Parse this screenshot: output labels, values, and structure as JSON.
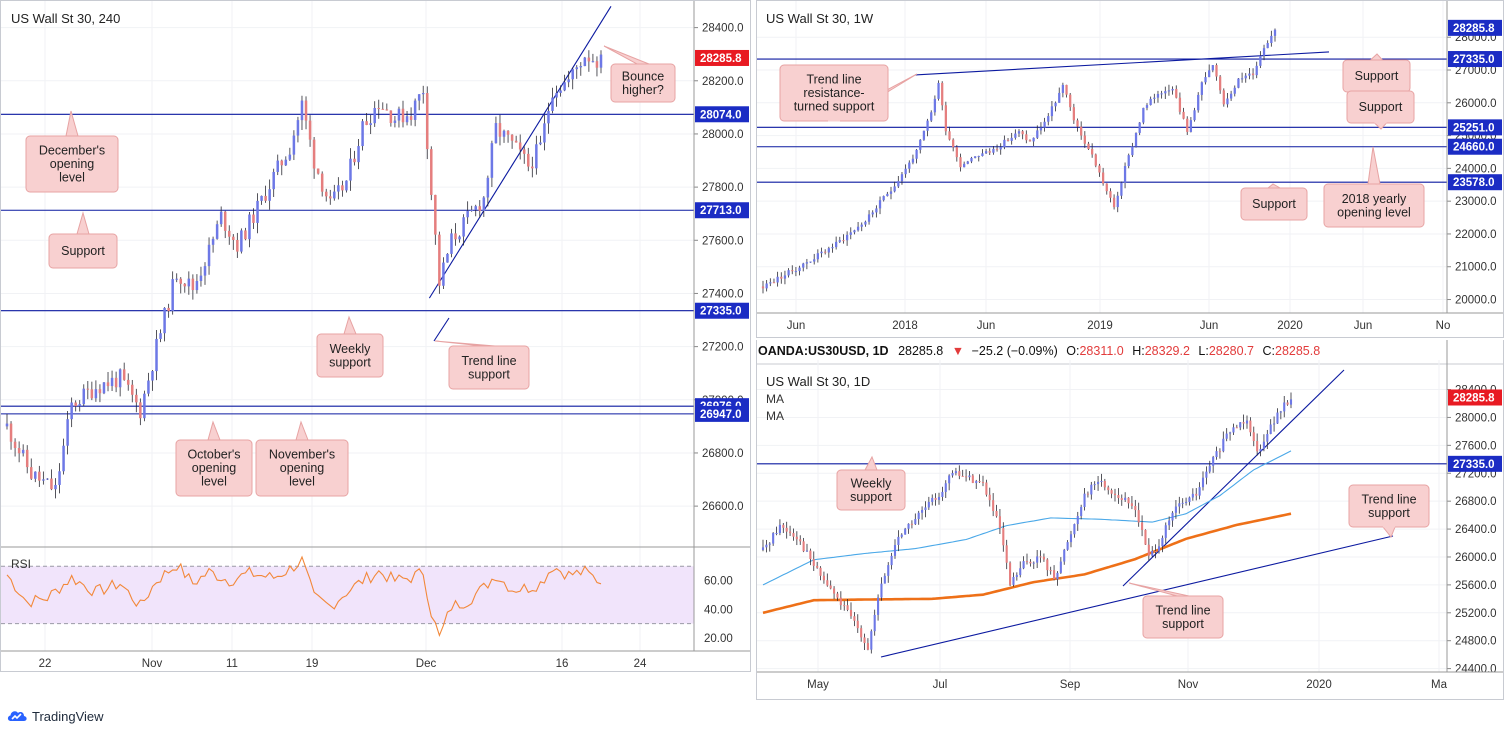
{
  "colors": {
    "up": "#6d78e6",
    "down": "#e57e7e",
    "level_line": "#0c1aa0",
    "badge_blue": "#1b2cc4",
    "badge_red": "#e81a22",
    "callout_bg": "#f8d0d0",
    "callout_border": "#e7a3a3",
    "rsi_line": "#f2883a",
    "rsi_band": "#f1e4fb",
    "ma_blue": "#4aa8e8",
    "ma_orange": "#ee7018"
  },
  "footer": {
    "brand": "TradingView",
    "icon": "tradingview-cloud-icon"
  },
  "chart_data": [
    {
      "id": "h4",
      "type": "candlestick",
      "title": "US Wall St 30, 240",
      "ylim": [
        26450,
        28470
      ],
      "y_ticks": [
        "28400.0",
        "28200.0",
        "28000.0",
        "27800.0",
        "27600.0",
        "27400.0",
        "27200.0",
        "27000.0",
        "26800.0",
        "26600.0"
      ],
      "x_ticks": [
        "22",
        "Nov",
        "11",
        "19",
        "Dec",
        "16",
        "24"
      ],
      "price_labels": [
        {
          "text": "28285.8",
          "value": 28285.8,
          "color": "red"
        },
        {
          "text": "28074.0",
          "value": 28074,
          "color": "blue"
        },
        {
          "text": "27713.0",
          "value": 27713,
          "color": "blue"
        },
        {
          "text": "27335.0",
          "value": 27335,
          "color": "blue"
        },
        {
          "text": "26976.0",
          "value": 26976,
          "color": "blue"
        },
        {
          "text": "26947.0",
          "value": 26947,
          "color": "blue"
        }
      ],
      "levels": [
        28074,
        27713,
        27335,
        26976,
        26947
      ],
      "callouts": [
        {
          "text": "December's\nopening\nlevel"
        },
        {
          "text": "Support"
        },
        {
          "text": "Weekly\nsupport"
        },
        {
          "text": "Trend line\nsupport"
        },
        {
          "text": "Bounce\nhigher?"
        },
        {
          "text": "October's\nopening\nlevel"
        },
        {
          "text": "November's\nopening\nlevel"
        }
      ],
      "anchors": [
        {
          "i": 0,
          "v": 26900
        },
        {
          "i": 6,
          "v": 26720
        },
        {
          "i": 12,
          "v": 26660
        },
        {
          "i": 16,
          "v": 26980
        },
        {
          "i": 22,
          "v": 27050
        },
        {
          "i": 28,
          "v": 27080
        },
        {
          "i": 33,
          "v": 26960
        },
        {
          "i": 37,
          "v": 27200
        },
        {
          "i": 42,
          "v": 27480
        },
        {
          "i": 46,
          "v": 27420
        },
        {
          "i": 50,
          "v": 27560
        },
        {
          "i": 53,
          "v": 27690
        },
        {
          "i": 57,
          "v": 27580
        },
        {
          "i": 62,
          "v": 27720
        },
        {
          "i": 66,
          "v": 27840
        },
        {
          "i": 70,
          "v": 27950
        },
        {
          "i": 73,
          "v": 28110
        },
        {
          "i": 76,
          "v": 27900
        },
        {
          "i": 80,
          "v": 27730
        },
        {
          "i": 84,
          "v": 27820
        },
        {
          "i": 88,
          "v": 28030
        },
        {
          "i": 92,
          "v": 28120
        },
        {
          "i": 96,
          "v": 28060
        },
        {
          "i": 100,
          "v": 28080
        },
        {
          "i": 103,
          "v": 28170
        },
        {
          "i": 105,
          "v": 27780
        },
        {
          "i": 107,
          "v": 27440
        },
        {
          "i": 110,
          "v": 27600
        },
        {
          "i": 114,
          "v": 27680
        },
        {
          "i": 118,
          "v": 27760
        },
        {
          "i": 121,
          "v": 28020
        },
        {
          "i": 125,
          "v": 27960
        },
        {
          "i": 129,
          "v": 27880
        },
        {
          "i": 132,
          "v": 27950
        },
        {
          "i": 135,
          "v": 28170
        },
        {
          "i": 139,
          "v": 28200
        },
        {
          "i": 143,
          "v": 28300
        },
        {
          "i": 147,
          "v": 28270
        }
      ],
      "rsi": {
        "label": "RSI",
        "ylim": [
          13,
          82
        ],
        "upper": 70,
        "lower": 30,
        "ticks": [
          "60.00",
          "40.00",
          "20.00"
        ],
        "anchors": [
          {
            "i": 0,
            "v": 64
          },
          {
            "i": 5,
            "v": 45
          },
          {
            "i": 10,
            "v": 48
          },
          {
            "i": 16,
            "v": 62
          },
          {
            "i": 22,
            "v": 52
          },
          {
            "i": 28,
            "v": 58
          },
          {
            "i": 33,
            "v": 42
          },
          {
            "i": 37,
            "v": 60
          },
          {
            "i": 42,
            "v": 71
          },
          {
            "i": 46,
            "v": 58
          },
          {
            "i": 50,
            "v": 66
          },
          {
            "i": 55,
            "v": 60
          },
          {
            "i": 60,
            "v": 65
          },
          {
            "i": 66,
            "v": 62
          },
          {
            "i": 70,
            "v": 68
          },
          {
            "i": 73,
            "v": 74
          },
          {
            "i": 76,
            "v": 48
          },
          {
            "i": 80,
            "v": 42
          },
          {
            "i": 84,
            "v": 52
          },
          {
            "i": 88,
            "v": 60
          },
          {
            "i": 92,
            "v": 66
          },
          {
            "i": 96,
            "v": 60
          },
          {
            "i": 100,
            "v": 62
          },
          {
            "i": 103,
            "v": 66
          },
          {
            "i": 105,
            "v": 38
          },
          {
            "i": 107,
            "v": 20
          },
          {
            "i": 110,
            "v": 42
          },
          {
            "i": 114,
            "v": 46
          },
          {
            "i": 118,
            "v": 55
          },
          {
            "i": 121,
            "v": 64
          },
          {
            "i": 125,
            "v": 54
          },
          {
            "i": 129,
            "v": 55
          },
          {
            "i": 132,
            "v": 58
          },
          {
            "i": 135,
            "v": 70
          },
          {
            "i": 139,
            "v": 64
          },
          {
            "i": 143,
            "v": 66
          },
          {
            "i": 147,
            "v": 59
          }
        ]
      }
    },
    {
      "id": "w1",
      "type": "candlestick",
      "title": "US Wall St 30, 1W",
      "ylim": [
        19650,
        28800
      ],
      "y_ticks": [
        "28000.0",
        "27000.0",
        "26000.0",
        "25000.0",
        "24000.0",
        "23000.0",
        "22000.0",
        "21000.0",
        "20000.0"
      ],
      "x_ticks": [
        "Jun",
        "2018",
        "Jun",
        "2019",
        "Jun",
        "2020",
        "Jun",
        "No"
      ],
      "price_labels": [
        {
          "text": "28285.8",
          "value": 28285.8,
          "color": "blue"
        },
        {
          "text": "27335.0",
          "value": 27335,
          "color": "blue"
        },
        {
          "text": "25251.0",
          "value": 25251,
          "color": "blue"
        },
        {
          "text": "24660.0",
          "value": 24660,
          "color": "blue"
        },
        {
          "text": "23578.0",
          "value": 23578,
          "color": "blue"
        }
      ],
      "levels": [
        27335,
        25251,
        24660,
        23578
      ],
      "callouts": [
        {
          "text": "Trend line\nresistance-\nturned support"
        },
        {
          "text": "Support"
        },
        {
          "text": "Support"
        },
        {
          "text": "Support"
        },
        {
          "text": "2018 yearly\nopening level"
        }
      ],
      "anchors": [
        {
          "i": 0,
          "v": 20400
        },
        {
          "i": 10,
          "v": 21000
        },
        {
          "i": 20,
          "v": 21700
        },
        {
          "i": 28,
          "v": 22400
        },
        {
          "i": 36,
          "v": 23500
        },
        {
          "i": 42,
          "v": 24500
        },
        {
          "i": 46,
          "v": 25700
        },
        {
          "i": 48,
          "v": 26600
        },
        {
          "i": 50,
          "v": 25200
        },
        {
          "i": 54,
          "v": 24100
        },
        {
          "i": 58,
          "v": 24400
        },
        {
          "i": 62,
          "v": 24500
        },
        {
          "i": 66,
          "v": 24800
        },
        {
          "i": 70,
          "v": 25100
        },
        {
          "i": 73,
          "v": 24800
        },
        {
          "i": 78,
          "v": 25600
        },
        {
          "i": 82,
          "v": 26500
        },
        {
          "i": 86,
          "v": 25200
        },
        {
          "i": 90,
          "v": 24400
        },
        {
          "i": 94,
          "v": 23300
        },
        {
          "i": 96,
          "v": 22800
        },
        {
          "i": 99,
          "v": 24000
        },
        {
          "i": 104,
          "v": 25800
        },
        {
          "i": 108,
          "v": 26300
        },
        {
          "i": 112,
          "v": 26500
        },
        {
          "i": 116,
          "v": 25100
        },
        {
          "i": 120,
          "v": 26600
        },
        {
          "i": 123,
          "v": 27100
        },
        {
          "i": 126,
          "v": 26000
        },
        {
          "i": 130,
          "v": 26700
        },
        {
          "i": 134,
          "v": 26900
        },
        {
          "i": 137,
          "v": 27700
        },
        {
          "i": 140,
          "v": 28280
        }
      ]
    },
    {
      "id": "d1",
      "type": "candlestick",
      "title": "US Wall St 30, 1D",
      "instrument_header": {
        "symbol": "OANDA:US30USD, 1D",
        "price": "28285.8",
        "arrow": "▼",
        "change": "−25.2 (−0.09%)",
        "o_label": "O:",
        "o_value": "28311.0",
        "h_label": "H:",
        "h_value": "28329.2",
        "l_label": "L:",
        "l_value": "28280.7",
        "c_label": "C:",
        "c_value": "28285.8"
      },
      "legend": [
        "MA",
        "MA"
      ],
      "ylim": [
        24380,
        28680
      ],
      "y_ticks": [
        "28400.0",
        "28000.0",
        "27600.0",
        "27200.0",
        "26800.0",
        "26400.0",
        "26000.0",
        "25600.0",
        "25200.0",
        "24800.0",
        "24400.0"
      ],
      "x_ticks": [
        "May",
        "Jul",
        "Sep",
        "Nov",
        "2020",
        "Ma"
      ],
      "price_labels": [
        {
          "text": "28285.8",
          "value": 28285.8,
          "color": "red"
        },
        {
          "text": "27335.0",
          "value": 27335,
          "color": "blue"
        }
      ],
      "levels": [
        27335
      ],
      "callouts": [
        {
          "text": "Weekly\nsupport"
        },
        {
          "text": "Trend line\nsupport"
        },
        {
          "text": "Trend line\nsupport"
        }
      ],
      "anchors": [
        {
          "i": 0,
          "v": 26100
        },
        {
          "i": 5,
          "v": 26450
        },
        {
          "i": 10,
          "v": 26300
        },
        {
          "i": 16,
          "v": 25800
        },
        {
          "i": 22,
          "v": 25400
        },
        {
          "i": 28,
          "v": 25000
        },
        {
          "i": 31,
          "v": 24700
        },
        {
          "i": 35,
          "v": 25600
        },
        {
          "i": 40,
          "v": 26300
        },
        {
          "i": 46,
          "v": 26600
        },
        {
          "i": 52,
          "v": 26900
        },
        {
          "i": 56,
          "v": 27200
        },
        {
          "i": 60,
          "v": 27150
        },
        {
          "i": 65,
          "v": 27050
        },
        {
          "i": 70,
          "v": 26400
        },
        {
          "i": 73,
          "v": 25600
        },
        {
          "i": 77,
          "v": 25900
        },
        {
          "i": 82,
          "v": 26000
        },
        {
          "i": 86,
          "v": 25700
        },
        {
          "i": 90,
          "v": 26200
        },
        {
          "i": 95,
          "v": 26900
        },
        {
          "i": 99,
          "v": 27100
        },
        {
          "i": 104,
          "v": 26900
        },
        {
          "i": 110,
          "v": 26700
        },
        {
          "i": 114,
          "v": 26000
        },
        {
          "i": 117,
          "v": 26200
        },
        {
          "i": 122,
          "v": 26700
        },
        {
          "i": 128,
          "v": 26900
        },
        {
          "i": 133,
          "v": 27400
        },
        {
          "i": 138,
          "v": 27800
        },
        {
          "i": 143,
          "v": 28000
        },
        {
          "i": 146,
          "v": 27500
        },
        {
          "i": 149,
          "v": 27800
        },
        {
          "i": 153,
          "v": 28100
        },
        {
          "i": 156,
          "v": 28285
        }
      ],
      "ma_fast": [
        {
          "i": 0,
          "v": 25600
        },
        {
          "i": 15,
          "v": 25960
        },
        {
          "i": 30,
          "v": 26050
        },
        {
          "i": 45,
          "v": 26120
        },
        {
          "i": 60,
          "v": 26250
        },
        {
          "i": 72,
          "v": 26450
        },
        {
          "i": 85,
          "v": 26560
        },
        {
          "i": 100,
          "v": 26540
        },
        {
          "i": 115,
          "v": 26500
        },
        {
          "i": 125,
          "v": 26620
        },
        {
          "i": 135,
          "v": 26880
        },
        {
          "i": 145,
          "v": 27250
        },
        {
          "i": 156,
          "v": 27520
        }
      ],
      "ma_slow": [
        {
          "i": 0,
          "v": 25200
        },
        {
          "i": 15,
          "v": 25380
        },
        {
          "i": 30,
          "v": 25390
        },
        {
          "i": 50,
          "v": 25400
        },
        {
          "i": 65,
          "v": 25460
        },
        {
          "i": 80,
          "v": 25640
        },
        {
          "i": 95,
          "v": 25750
        },
        {
          "i": 110,
          "v": 25970
        },
        {
          "i": 125,
          "v": 26260
        },
        {
          "i": 140,
          "v": 26460
        },
        {
          "i": 156,
          "v": 26620
        }
      ]
    }
  ]
}
